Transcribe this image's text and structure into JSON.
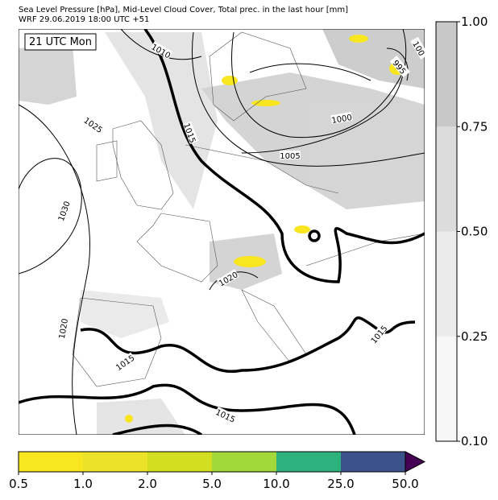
{
  "header": {
    "title": [
      "Sea Level Pressure [hPa], Mid-Level Cloud Cover, Total prec. in the last hour [mm]",
      "WRF 29.06.2019 18:00 UTC +51"
    ]
  },
  "map": {
    "time_label": "21 UTC Mon",
    "contour_labels": [
      "1010",
      "1015",
      "1025",
      "1030",
      "1020",
      "1005",
      "1000",
      "995",
      "100",
      "1015",
      "1015",
      "1015",
      "1020"
    ]
  },
  "cloud_colorbar": {
    "ticks": [
      "0.10",
      "0.25",
      "0.50",
      "0.75",
      "1.00"
    ],
    "colors": [
      "#f7f7f7",
      "#ebebeb",
      "#dcdcdc",
      "#c8c8c8"
    ]
  },
  "precip_colorbar": {
    "ticks": [
      "0.5",
      "1.0",
      "2.0",
      "5.0",
      "10.0",
      "25.0",
      "50.0"
    ],
    "colors": [
      "#f8e621",
      "#ebe22a",
      "#d2de22",
      "#a2d83a",
      "#2db27d",
      "#3b528b",
      "#440154"
    ]
  }
}
